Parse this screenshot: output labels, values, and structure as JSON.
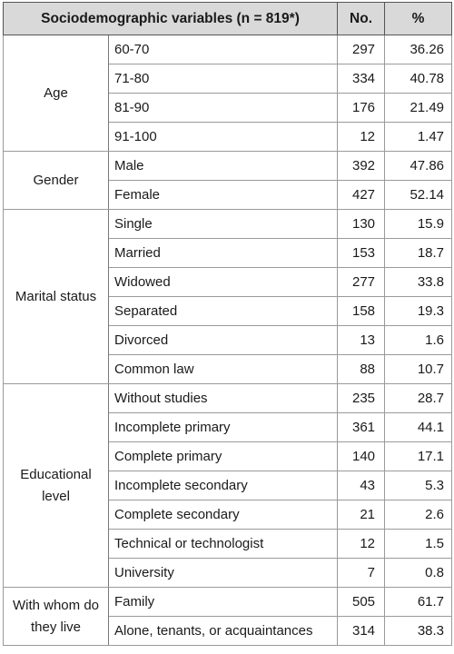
{
  "header": {
    "variables": "Sociodemographic variables (n = 819*)",
    "number": "No.",
    "percent": "%"
  },
  "groups": [
    {
      "label": "Age",
      "rows": [
        {
          "category": "60-70",
          "number": 297,
          "percent": 36.26
        },
        {
          "category": "71-80",
          "number": 334,
          "percent": 40.78
        },
        {
          "category": "81-90",
          "number": 176,
          "percent": 21.49
        },
        {
          "category": "91-100",
          "number": 12,
          "percent": 1.47
        }
      ]
    },
    {
      "label": "Gender",
      "rows": [
        {
          "category": "Male",
          "number": 392,
          "percent": 47.86
        },
        {
          "category": "Female",
          "number": 427,
          "percent": 52.14
        }
      ]
    },
    {
      "label": "Marital status",
      "rows": [
        {
          "category": "Single",
          "number": 130,
          "percent": 15.9
        },
        {
          "category": "Married",
          "number": 153,
          "percent": 18.7
        },
        {
          "category": "Widowed",
          "number": 277,
          "percent": 33.8
        },
        {
          "category": "Separated",
          "number": 158,
          "percent": 19.3
        },
        {
          "category": "Divorced",
          "number": 13,
          "percent": 1.6
        },
        {
          "category": "Common law",
          "number": 88,
          "percent": 10.7
        }
      ]
    },
    {
      "label": "Educational level",
      "rows": [
        {
          "category": "Without studies",
          "number": 235,
          "percent": 28.7
        },
        {
          "category": "Incomplete primary",
          "number": 361,
          "percent": 44.1
        },
        {
          "category": "Complete primary",
          "number": 140,
          "percent": 17.1
        },
        {
          "category": "Incomplete secondary",
          "number": 43,
          "percent": 5.3
        },
        {
          "category": "Complete secondary",
          "number": 21,
          "percent": 2.6
        },
        {
          "category": "Technical or technologist",
          "number": 12,
          "percent": 1.5
        },
        {
          "category": "University",
          "number": 7,
          "percent": 0.8
        }
      ]
    },
    {
      "label": "With whom do they live",
      "rows": [
        {
          "category": "Family",
          "number": 505,
          "percent": 61.7
        },
        {
          "category": "Alone, tenants, or acquaintances",
          "number": 314,
          "percent": 38.3
        }
      ]
    }
  ]
}
